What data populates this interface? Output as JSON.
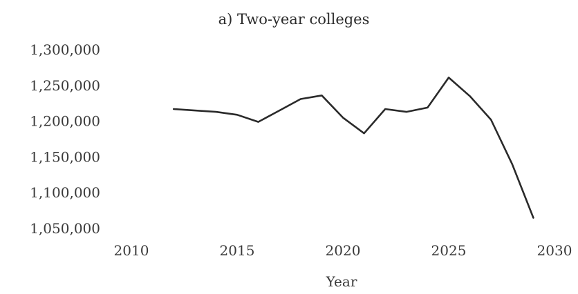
{
  "chart_data": {
    "type": "line",
    "title": "a) Two-year colleges",
    "xlabel": "Year",
    "ylabel": "",
    "xlim": [
      2010,
      2030
    ],
    "ylim": [
      1050000,
      1300000
    ],
    "x_ticks": [
      "2010",
      "2015",
      "2020",
      "2025",
      "2030"
    ],
    "y_ticks": [
      "1,050,000",
      "1,100,000",
      "1,150,000",
      "1,200,000",
      "1,250,000",
      "1,300,000"
    ],
    "grid": false,
    "legend": "none",
    "series": [
      {
        "x": [
          2012,
          2013,
          2014,
          2015,
          2016,
          2017,
          2018,
          2019,
          2020,
          2021,
          2022,
          2023,
          2024,
          2025,
          2026,
          2027,
          2028,
          2029
        ],
        "y": [
          1217000,
          1215000,
          1213000,
          1209000,
          1199000,
          1215000,
          1231000,
          1236000,
          1205000,
          1183000,
          1217000,
          1213000,
          1219000,
          1261000,
          1235000,
          1202000,
          1140000,
          1065000
        ],
        "color": "#2a2a2a"
      }
    ]
  }
}
